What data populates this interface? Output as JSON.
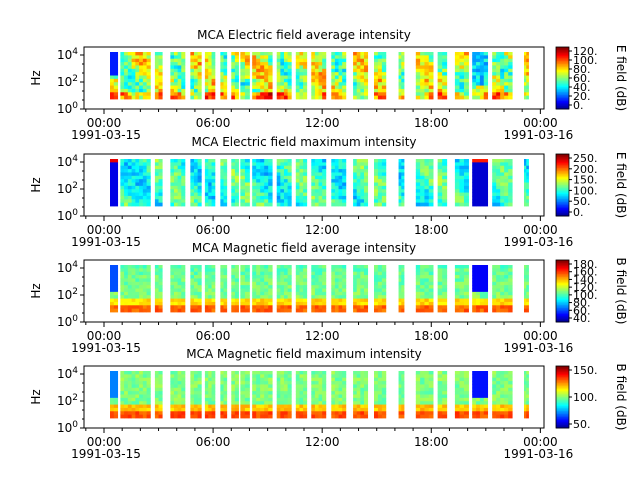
{
  "chart_data": [
    {
      "type": "heatmap",
      "title": "MCA  Electric field average intensity",
      "ylabel": "Hz",
      "y_scale": "log",
      "y_ticks": [
        "10^4",
        "10^2",
        "10^0"
      ],
      "x_ticks": [
        "00:00",
        "06:00",
        "12:00",
        "18:00",
        "00:00"
      ],
      "x_dates": [
        "1991-03-15",
        "1991-03-16"
      ],
      "colorbar": {
        "label": "E field (dB)",
        "ticks": [
          "120.",
          "100.",
          "80.",
          "60.",
          "40.",
          "20.",
          "0."
        ]
      },
      "mode": "eavg"
    },
    {
      "type": "heatmap",
      "title": "MCA  Electric field maximum intensity",
      "ylabel": "Hz",
      "y_scale": "log",
      "y_ticks": [
        "10^4",
        "10^2",
        "10^0"
      ],
      "x_ticks": [
        "00:00",
        "06:00",
        "12:00",
        "18:00",
        "00:00"
      ],
      "x_dates": [
        "1991-03-15",
        "1991-03-16"
      ],
      "colorbar": {
        "label": "E field (dB)",
        "ticks": [
          "250.",
          "200.",
          "150.",
          "100.",
          "50.",
          "0."
        ]
      },
      "mode": "emax"
    },
    {
      "type": "heatmap",
      "title": "MCA  Magnetic field average intensity",
      "ylabel": "Hz",
      "y_scale": "log",
      "y_ticks": [
        "10^4",
        "10^2",
        "10^0"
      ],
      "x_ticks": [
        "00:00",
        "06:00",
        "12:00",
        "18:00",
        "00:00"
      ],
      "x_dates": [
        "1991-03-15",
        "1991-03-16"
      ],
      "colorbar": {
        "label": "B field (dB)",
        "ticks": [
          "180.",
          "160.",
          "140.",
          "120.",
          "100.",
          "80.",
          "60.",
          "40."
        ]
      },
      "mode": "bavg"
    },
    {
      "type": "heatmap",
      "title": "MCA  Magnetic field maximum intensity",
      "ylabel": "Hz",
      "y_scale": "log",
      "y_ticks": [
        "10^4",
        "10^2",
        "10^0"
      ],
      "x_ticks": [
        "00:00",
        "06:00",
        "12:00",
        "18:00",
        "00:00"
      ],
      "x_dates": [
        "1991-03-15",
        "1991-03-16"
      ],
      "colorbar": {
        "label": "B field (dB)",
        "ticks": [
          "150.",
          "100.",
          "50."
        ]
      },
      "mode": "bmax"
    }
  ],
  "data_segments_hours": [
    [
      0.33,
      0.75
    ],
    [
      0.9,
      2.55
    ],
    [
      2.8,
      3.2
    ],
    [
      3.65,
      4.45
    ],
    [
      4.75,
      5.35
    ],
    [
      5.55,
      6.1
    ],
    [
      6.4,
      6.75
    ],
    [
      7.0,
      7.4
    ],
    [
      7.5,
      8.0
    ],
    [
      8.15,
      9.25
    ],
    [
      9.5,
      10.3
    ],
    [
      10.55,
      11.15
    ],
    [
      11.4,
      12.2
    ],
    [
      12.5,
      13.3
    ],
    [
      13.7,
      14.5
    ],
    [
      14.85,
      15.5
    ],
    [
      16.2,
      16.5
    ],
    [
      17.15,
      18.1
    ],
    [
      18.35,
      18.85
    ],
    [
      19.3,
      20.05
    ],
    [
      20.25,
      21.1
    ],
    [
      21.35,
      22.45
    ],
    [
      23.1,
      23.35
    ]
  ],
  "event_band_hours": [
    20.25,
    21.0
  ]
}
